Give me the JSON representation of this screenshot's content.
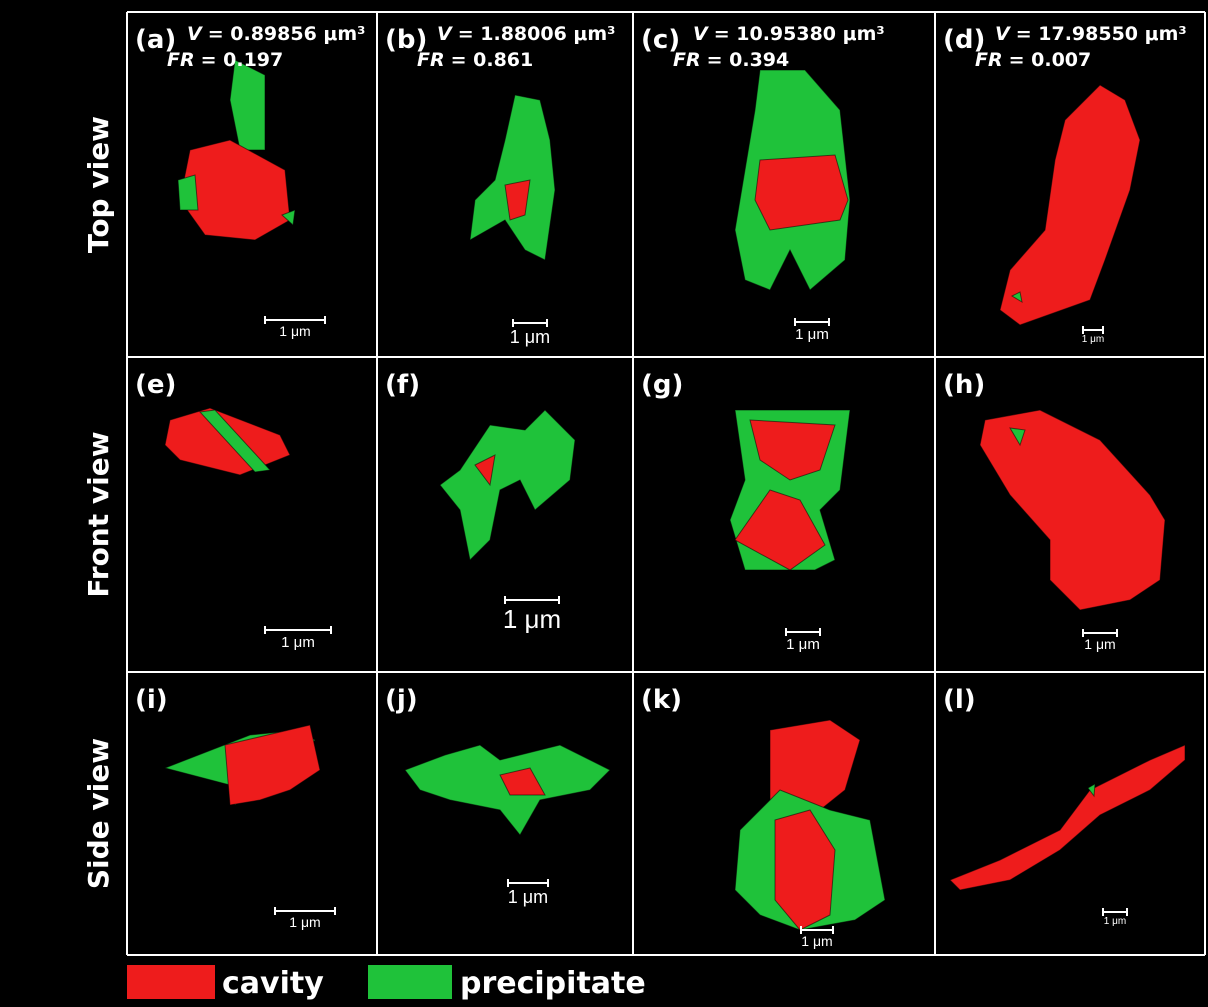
{
  "row_labels": [
    "Top view",
    "Front view",
    "Side view"
  ],
  "panels": [
    {
      "label": "(a)",
      "volume": {
        "symbol": "V",
        "text": "= 0.89856 μm³"
      },
      "fr": {
        "symbol": "FR",
        "text": "= 0.197"
      },
      "scale_bar": "1 μm"
    },
    {
      "label": "(b)",
      "volume": {
        "symbol": "V",
        "text": "= 1.88006 μm³"
      },
      "fr": {
        "symbol": "FR",
        "text": "= 0.861"
      },
      "scale_bar": "1 μm"
    },
    {
      "label": "(c)",
      "volume": {
        "symbol": "V",
        "text": "= 10.95380 μm³"
      },
      "fr": {
        "symbol": "FR",
        "text": "= 0.394"
      },
      "scale_bar": "1 μm"
    },
    {
      "label": "(d)",
      "volume": {
        "symbol": "V",
        "text": "= 17.98550 μm³"
      },
      "fr": {
        "symbol": "FR",
        "text": "= 0.007"
      },
      "scale_bar": "1 μm"
    },
    {
      "label": "(e)",
      "scale_bar": "1 μm"
    },
    {
      "label": "(f)",
      "scale_bar": "1 μm"
    },
    {
      "label": "(g)",
      "scale_bar": "1 μm"
    },
    {
      "label": "(h)",
      "scale_bar": "1 μm"
    },
    {
      "label": "(i)",
      "scale_bar": "1 μm"
    },
    {
      "label": "(j)",
      "scale_bar": "1 μm"
    },
    {
      "label": "(k)",
      "scale_bar": "1 μm"
    },
    {
      "label": "(l)",
      "scale_bar": "1 μm"
    }
  ],
  "legend": [
    "cavity",
    "precipitate"
  ]
}
